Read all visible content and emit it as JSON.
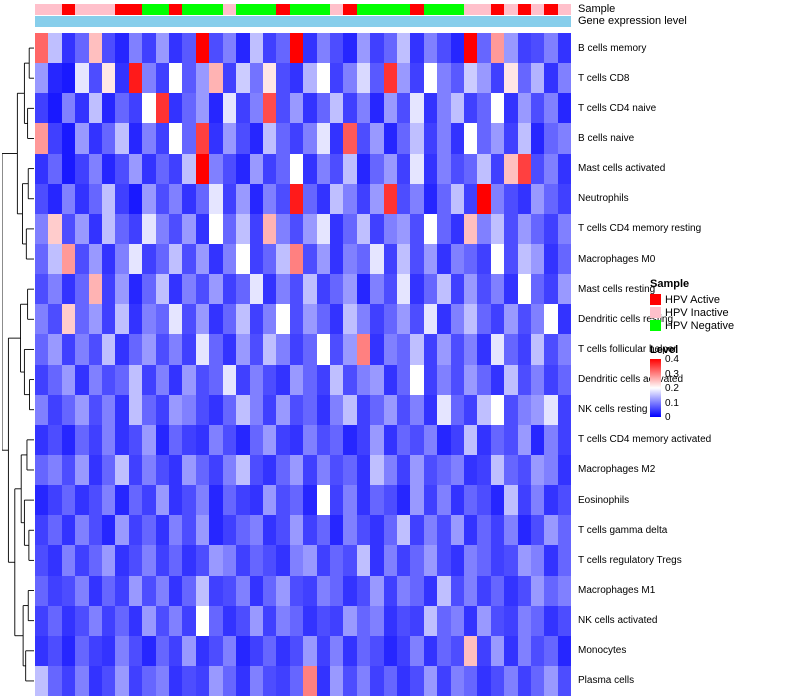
{
  "annotations": {
    "sample_label": "Sample",
    "gene_label": "Gene expression level",
    "gene_bar_color": "#87CEEB"
  },
  "legend": {
    "sample_title": "Sample",
    "sample_items": [
      {
        "key": "active",
        "label": "HPV Active",
        "color": "#FF0000"
      },
      {
        "key": "inactive",
        "label": "HPV Inactive",
        "color": "#FFC0CB"
      },
      {
        "key": "negative",
        "label": "HPV Negative",
        "color": "#00FF00"
      }
    ],
    "level_title": "Level",
    "level_ticks": [
      "0.4",
      "0.3",
      "0.2",
      "0.1",
      "0"
    ]
  },
  "chart_data": {
    "type": "heatmap",
    "title": "",
    "xlabel": "",
    "ylabel": "",
    "legend_position": "right",
    "rows": [
      "B cells memory",
      "T cells CD8",
      "T cells CD4 naive",
      "B cells naive",
      "Mast cells activated",
      "Neutrophils",
      "T cells CD4 memory resting",
      "Macrophages M0",
      "Mast cells resting",
      "Dendritic cells resting",
      "T cells follicular helper",
      "Dendritic cells activated",
      "NK cells resting",
      "T cells CD4 memory activated",
      "Macrophages M2",
      "Eosinophils",
      "T cells gamma delta",
      "T cells regulatory Tregs",
      "Macrophages M1",
      "NK cells activated",
      "Monocytes",
      "Plasma cells"
    ],
    "n_columns": 40,
    "column_sample_status": [
      "inactive",
      "inactive",
      "active",
      "inactive",
      "inactive",
      "inactive",
      "active",
      "active",
      "negative",
      "negative",
      "active",
      "negative",
      "negative",
      "negative",
      "inactive",
      "negative",
      "negative",
      "negative",
      "active",
      "negative",
      "negative",
      "negative",
      "inactive",
      "active",
      "negative",
      "negative",
      "negative",
      "negative",
      "active",
      "negative",
      "negative",
      "negative",
      "inactive",
      "inactive",
      "active",
      "inactive",
      "active",
      "inactive",
      "active",
      "inactive"
    ],
    "colorscale": {
      "domain": [
        0,
        0.2,
        0.4
      ],
      "colors": [
        "#0000FF",
        "#FFFFFF",
        "#FF0000"
      ]
    },
    "values": [
      [
        0.32,
        0.15,
        0.04,
        0.08,
        0.25,
        0.06,
        0.03,
        0.1,
        0.05,
        0.12,
        0.04,
        0.07,
        0.42,
        0.06,
        0.1,
        0.03,
        0.15,
        0.05,
        0.08,
        0.4,
        0.04,
        0.1,
        0.06,
        0.03,
        0.12,
        0.05,
        0.08,
        0.15,
        0.04,
        0.1,
        0.06,
        0.03,
        0.43,
        0.08,
        0.28,
        0.12,
        0.05,
        0.06,
        0.1,
        0.04
      ],
      [
        0.12,
        0.03,
        0.02,
        0.18,
        0.06,
        0.22,
        0.04,
        0.38,
        0.1,
        0.05,
        0.2,
        0.07,
        0.12,
        0.26,
        0.05,
        0.16,
        0.09,
        0.22,
        0.06,
        0.04,
        0.14,
        0.2,
        0.05,
        0.1,
        0.17,
        0.07,
        0.36,
        0.12,
        0.05,
        0.2,
        0.1,
        0.07,
        0.16,
        0.12,
        0.05,
        0.22,
        0.08,
        0.14,
        0.04,
        0.1
      ],
      [
        0.05,
        0.02,
        0.1,
        0.04,
        0.15,
        0.03,
        0.08,
        0.05,
        0.2,
        0.36,
        0.04,
        0.08,
        0.12,
        0.03,
        0.18,
        0.05,
        0.1,
        0.34,
        0.06,
        0.12,
        0.04,
        0.08,
        0.15,
        0.05,
        0.1,
        0.03,
        0.12,
        0.06,
        0.18,
        0.04,
        0.1,
        0.15,
        0.05,
        0.08,
        0.2,
        0.04,
        0.12,
        0.06,
        0.1,
        0.03
      ],
      [
        0.28,
        0.05,
        0.02,
        0.12,
        0.04,
        0.08,
        0.15,
        0.03,
        0.1,
        0.05,
        0.2,
        0.08,
        0.35,
        0.04,
        0.12,
        0.06,
        0.03,
        0.15,
        0.08,
        0.05,
        0.1,
        0.18,
        0.04,
        0.33,
        0.06,
        0.12,
        0.03,
        0.08,
        0.15,
        0.05,
        0.1,
        0.04,
        0.2,
        0.08,
        0.12,
        0.05,
        0.15,
        0.03,
        0.08,
        0.1
      ],
      [
        0.04,
        0.08,
        0.02,
        0.05,
        0.1,
        0.03,
        0.06,
        0.12,
        0.04,
        0.08,
        0.05,
        0.15,
        0.44,
        0.1,
        0.06,
        0.03,
        0.12,
        0.05,
        0.08,
        0.2,
        0.04,
        0.1,
        0.06,
        0.15,
        0.03,
        0.08,
        0.12,
        0.05,
        0.18,
        0.04,
        0.1,
        0.06,
        0.08,
        0.15,
        0.05,
        0.25,
        0.35,
        0.06,
        0.1,
        0.04
      ],
      [
        0.06,
        0.03,
        0.1,
        0.04,
        0.08,
        0.15,
        0.05,
        0.02,
        0.12,
        0.06,
        0.1,
        0.04,
        0.08,
        0.18,
        0.05,
        0.12,
        0.03,
        0.1,
        0.06,
        0.38,
        0.08,
        0.04,
        0.15,
        0.1,
        0.05,
        0.12,
        0.36,
        0.06,
        0.1,
        0.03,
        0.08,
        0.15,
        0.05,
        0.4,
        0.1,
        0.06,
        0.04,
        0.12,
        0.08,
        0.05
      ],
      [
        0.1,
        0.24,
        0.06,
        0.12,
        0.04,
        0.15,
        0.08,
        0.05,
        0.18,
        0.1,
        0.06,
        0.12,
        0.04,
        0.2,
        0.08,
        0.15,
        0.05,
        0.26,
        0.1,
        0.06,
        0.12,
        0.18,
        0.04,
        0.08,
        0.15,
        0.05,
        0.1,
        0.12,
        0.06,
        0.2,
        0.08,
        0.04,
        0.25,
        0.1,
        0.15,
        0.06,
        0.12,
        0.08,
        0.05,
        0.1
      ],
      [
        0.08,
        0.15,
        0.28,
        0.06,
        0.12,
        0.04,
        0.1,
        0.18,
        0.05,
        0.08,
        0.15,
        0.06,
        0.12,
        0.04,
        0.1,
        0.2,
        0.05,
        0.08,
        0.15,
        0.3,
        0.06,
        0.12,
        0.04,
        0.1,
        0.08,
        0.18,
        0.05,
        0.15,
        0.06,
        0.12,
        0.04,
        0.1,
        0.08,
        0.05,
        0.2,
        0.06,
        0.15,
        0.12,
        0.04,
        0.08
      ],
      [
        0.06,
        0.1,
        0.04,
        0.08,
        0.26,
        0.05,
        0.12,
        0.03,
        0.08,
        0.15,
        0.04,
        0.1,
        0.06,
        0.12,
        0.05,
        0.08,
        0.18,
        0.04,
        0.1,
        0.06,
        0.15,
        0.05,
        0.08,
        0.12,
        0.03,
        0.1,
        0.06,
        0.18,
        0.04,
        0.08,
        0.15,
        0.05,
        0.12,
        0.06,
        0.1,
        0.04,
        0.2,
        0.08,
        0.05,
        0.12
      ],
      [
        0.1,
        0.06,
        0.24,
        0.08,
        0.12,
        0.05,
        0.15,
        0.04,
        0.1,
        0.08,
        0.18,
        0.06,
        0.12,
        0.04,
        0.08,
        0.15,
        0.05,
        0.1,
        0.2,
        0.06,
        0.12,
        0.08,
        0.04,
        0.15,
        0.1,
        0.05,
        0.08,
        0.12,
        0.06,
        0.18,
        0.04,
        0.1,
        0.15,
        0.08,
        0.05,
        0.12,
        0.06,
        0.1,
        0.2,
        0.04
      ],
      [
        0.08,
        0.12,
        0.05,
        0.1,
        0.06,
        0.15,
        0.04,
        0.08,
        0.12,
        0.06,
        0.1,
        0.05,
        0.18,
        0.08,
        0.04,
        0.12,
        0.06,
        0.15,
        0.1,
        0.05,
        0.08,
        0.2,
        0.06,
        0.12,
        0.3,
        0.04,
        0.1,
        0.08,
        0.15,
        0.05,
        0.12,
        0.06,
        0.1,
        0.04,
        0.18,
        0.08,
        0.05,
        0.15,
        0.06,
        0.1
      ],
      [
        0.05,
        0.08,
        0.12,
        0.04,
        0.1,
        0.06,
        0.08,
        0.15,
        0.05,
        0.1,
        0.04,
        0.12,
        0.06,
        0.08,
        0.18,
        0.05,
        0.1,
        0.06,
        0.04,
        0.12,
        0.08,
        0.05,
        0.15,
        0.06,
        0.1,
        0.12,
        0.04,
        0.08,
        0.2,
        0.05,
        0.1,
        0.06,
        0.12,
        0.08,
        0.04,
        0.15,
        0.06,
        0.1,
        0.05,
        0.08
      ],
      [
        0.1,
        0.05,
        0.08,
        0.12,
        0.06,
        0.1,
        0.04,
        0.15,
        0.08,
        0.05,
        0.12,
        0.1,
        0.06,
        0.04,
        0.08,
        0.15,
        0.1,
        0.05,
        0.12,
        0.06,
        0.08,
        0.04,
        0.1,
        0.15,
        0.05,
        0.08,
        0.12,
        0.06,
        0.1,
        0.04,
        0.18,
        0.08,
        0.05,
        0.15,
        0.2,
        0.06,
        0.1,
        0.12,
        0.18,
        0.05
      ],
      [
        0.04,
        0.06,
        0.03,
        0.08,
        0.05,
        0.1,
        0.04,
        0.06,
        0.12,
        0.03,
        0.08,
        0.05,
        0.04,
        0.1,
        0.06,
        0.03,
        0.08,
        0.12,
        0.05,
        0.04,
        0.1,
        0.06,
        0.08,
        0.03,
        0.05,
        0.12,
        0.04,
        0.08,
        0.06,
        0.1,
        0.03,
        0.05,
        0.15,
        0.04,
        0.08,
        0.06,
        0.12,
        0.03,
        0.1,
        0.05
      ],
      [
        0.08,
        0.1,
        0.06,
        0.12,
        0.04,
        0.08,
        0.15,
        0.05,
        0.1,
        0.06,
        0.04,
        0.12,
        0.08,
        0.05,
        0.1,
        0.15,
        0.06,
        0.04,
        0.08,
        0.12,
        0.05,
        0.1,
        0.06,
        0.08,
        0.04,
        0.15,
        0.1,
        0.05,
        0.12,
        0.06,
        0.08,
        0.1,
        0.04,
        0.05,
        0.15,
        0.08,
        0.06,
        0.12,
        0.1,
        0.04
      ],
      [
        0.03,
        0.05,
        0.08,
        0.04,
        0.06,
        0.1,
        0.03,
        0.08,
        0.05,
        0.12,
        0.04,
        0.06,
        0.1,
        0.03,
        0.08,
        0.05,
        0.04,
        0.12,
        0.06,
        0.08,
        0.03,
        0.2,
        0.05,
        0.1,
        0.04,
        0.08,
        0.06,
        0.03,
        0.12,
        0.05,
        0.1,
        0.04,
        0.08,
        0.06,
        0.03,
        0.15,
        0.05,
        0.1,
        0.04,
        0.06
      ],
      [
        0.05,
        0.08,
        0.04,
        0.1,
        0.06,
        0.03,
        0.12,
        0.05,
        0.08,
        0.04,
        0.1,
        0.06,
        0.12,
        0.03,
        0.05,
        0.08,
        0.1,
        0.04,
        0.06,
        0.12,
        0.05,
        0.08,
        0.03,
        0.1,
        0.06,
        0.04,
        0.08,
        0.15,
        0.05,
        0.1,
        0.06,
        0.12,
        0.04,
        0.08,
        0.05,
        0.1,
        0.03,
        0.06,
        0.12,
        0.08
      ],
      [
        0.06,
        0.04,
        0.1,
        0.05,
        0.08,
        0.12,
        0.04,
        0.06,
        0.1,
        0.05,
        0.08,
        0.04,
        0.06,
        0.12,
        0.1,
        0.05,
        0.08,
        0.06,
        0.04,
        0.1,
        0.12,
        0.05,
        0.08,
        0.06,
        0.15,
        0.04,
        0.1,
        0.05,
        0.08,
        0.12,
        0.06,
        0.04,
        0.1,
        0.08,
        0.05,
        0.06,
        0.12,
        0.1,
        0.04,
        0.08
      ],
      [
        0.08,
        0.05,
        0.06,
        0.1,
        0.04,
        0.08,
        0.05,
        0.12,
        0.06,
        0.1,
        0.04,
        0.08,
        0.15,
        0.05,
        0.06,
        0.1,
        0.04,
        0.08,
        0.12,
        0.06,
        0.05,
        0.1,
        0.08,
        0.04,
        0.06,
        0.12,
        0.05,
        0.1,
        0.08,
        0.04,
        0.15,
        0.06,
        0.1,
        0.05,
        0.08,
        0.04,
        0.06,
        0.12,
        0.08,
        0.1
      ],
      [
        0.05,
        0.08,
        0.04,
        0.06,
        0.1,
        0.05,
        0.08,
        0.04,
        0.12,
        0.06,
        0.1,
        0.05,
        0.2,
        0.08,
        0.04,
        0.06,
        0.12,
        0.05,
        0.1,
        0.08,
        0.04,
        0.06,
        0.05,
        0.12,
        0.08,
        0.1,
        0.04,
        0.06,
        0.05,
        0.15,
        0.08,
        0.1,
        0.04,
        0.12,
        0.06,
        0.05,
        0.1,
        0.08,
        0.04,
        0.06
      ],
      [
        0.04,
        0.06,
        0.03,
        0.08,
        0.05,
        0.04,
        0.1,
        0.06,
        0.03,
        0.08,
        0.05,
        0.12,
        0.04,
        0.06,
        0.1,
        0.03,
        0.05,
        0.08,
        0.04,
        0.06,
        0.12,
        0.05,
        0.1,
        0.04,
        0.08,
        0.06,
        0.03,
        0.05,
        0.1,
        0.04,
        0.08,
        0.06,
        0.25,
        0.05,
        0.12,
        0.04,
        0.1,
        0.06,
        0.08,
        0.03
      ],
      [
        0.15,
        0.08,
        0.05,
        0.1,
        0.04,
        0.06,
        0.12,
        0.05,
        0.08,
        0.1,
        0.04,
        0.06,
        0.05,
        0.12,
        0.08,
        0.04,
        0.1,
        0.06,
        0.05,
        0.08,
        0.3,
        0.04,
        0.12,
        0.06,
        0.1,
        0.05,
        0.08,
        0.04,
        0.06,
        0.12,
        0.05,
        0.1,
        0.08,
        0.04,
        0.06,
        0.1,
        0.05,
        0.08,
        0.12,
        0.06
      ]
    ]
  },
  "dendrogram": {
    "h": 1.0,
    "c": [
      {
        "h": 0.52,
        "c": [
          {
            "h": 0.3,
            "c": [
              {
                "h": 0.15,
                "c": [
                  0,
                  1
                ]
              },
              {
                "h": 0.2,
                "c": [
                  2,
                  3
                ]
              }
            ]
          },
          {
            "h": 0.36,
            "c": [
              {
                "h": 0.18,
                "c": [
                  4,
                  5
                ]
              },
              {
                "h": 0.24,
                "c": [
                  6,
                  7
                ]
              }
            ]
          }
        ]
      },
      {
        "h": 0.8,
        "c": [
          {
            "h": 0.42,
            "c": [
              {
                "h": 0.2,
                "c": [
                  8,
                  9
                ]
              },
              {
                "h": 0.3,
                "c": [
                  10,
                  {
                    "h": 0.14,
                    "c": [
                      11,
                      12
                    ]
                  }
                ]
              }
            ]
          },
          {
            "h": 0.6,
            "c": [
              {
                "h": 0.4,
                "c": [
                  {
                    "h": 0.22,
                    "c": [
                      13,
                      14
                    ]
                  },
                  {
                    "h": 0.3,
                    "c": [
                      15,
                      {
                        "h": 0.16,
                        "c": [
                          16,
                          17
                        ]
                      }
                    ]
                  }
                ]
              },
              {
                "h": 0.34,
                "c": [
                  {
                    "h": 0.18,
                    "c": [
                      18,
                      19
                    ]
                  },
                  {
                    "h": 0.26,
                    "c": [
                      20,
                      21
                    ]
                  }
                ]
              }
            ]
          }
        ]
      }
    ]
  }
}
